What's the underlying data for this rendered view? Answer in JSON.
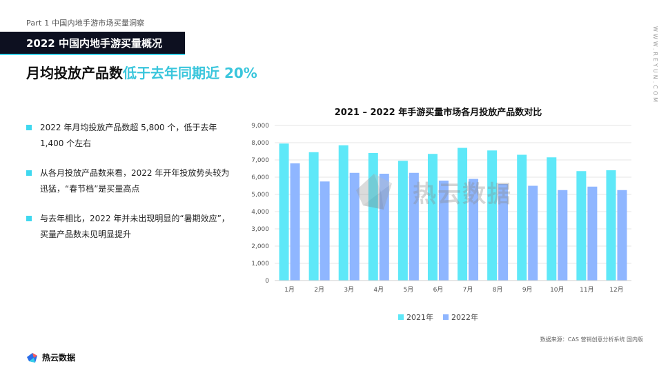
{
  "header": {
    "part": "Part 1  中国内地手游市场买量洞察",
    "section": "2022 中国内地手游买量概况",
    "headline_dark": "月均投放产品数",
    "headline_accent": "低于去年同期近 20%",
    "side_url": "WWW.REYUN.COM"
  },
  "bullets": [
    "2022 年月均投放产品数超 5,800 个，低于去年 1,400 个左右",
    "从各月投放产品数来看，2022 年开年投放势头较为迅猛，“春节档”是买量高点",
    "与去年相比，2022 年并未出现明显的“暑期效应”，买量产品数未见明显提升"
  ],
  "chart_data": {
    "type": "bar",
    "title": "2021 – 2022 年手游买量市场各月投放产品数对比",
    "categories": [
      "1月",
      "2月",
      "3月",
      "4月",
      "5月",
      "6月",
      "7月",
      "8月",
      "9月",
      "10月",
      "11月",
      "12月"
    ],
    "series": [
      {
        "name": "2021年",
        "values": [
          7950,
          7450,
          7850,
          7400,
          6950,
          7350,
          7700,
          7550,
          7300,
          7150,
          6350,
          6400
        ]
      },
      {
        "name": "2022年",
        "values": [
          6800,
          5750,
          6250,
          6200,
          6250,
          5800,
          5900,
          5600,
          5500,
          5250,
          5450,
          5250
        ]
      }
    ],
    "ylim": [
      0,
      9000
    ],
    "yticks": [
      0,
      1000,
      2000,
      3000,
      4000,
      5000,
      6000,
      7000,
      8000,
      9000
    ],
    "ytick_labels": [
      "0",
      "1,000",
      "2,000",
      "3,000",
      "4,000",
      "5,000",
      "6,000",
      "7,000",
      "8,000",
      "9,000"
    ],
    "grid": true,
    "legend_position": "bottom",
    "colors": [
      "#5ee8f8",
      "#8fb6ff"
    ]
  },
  "source": "数据来源：CAS 营销创意分析系统 国内版",
  "logo": {
    "text": "热云数据"
  },
  "watermark": {
    "text": "热云数据"
  }
}
